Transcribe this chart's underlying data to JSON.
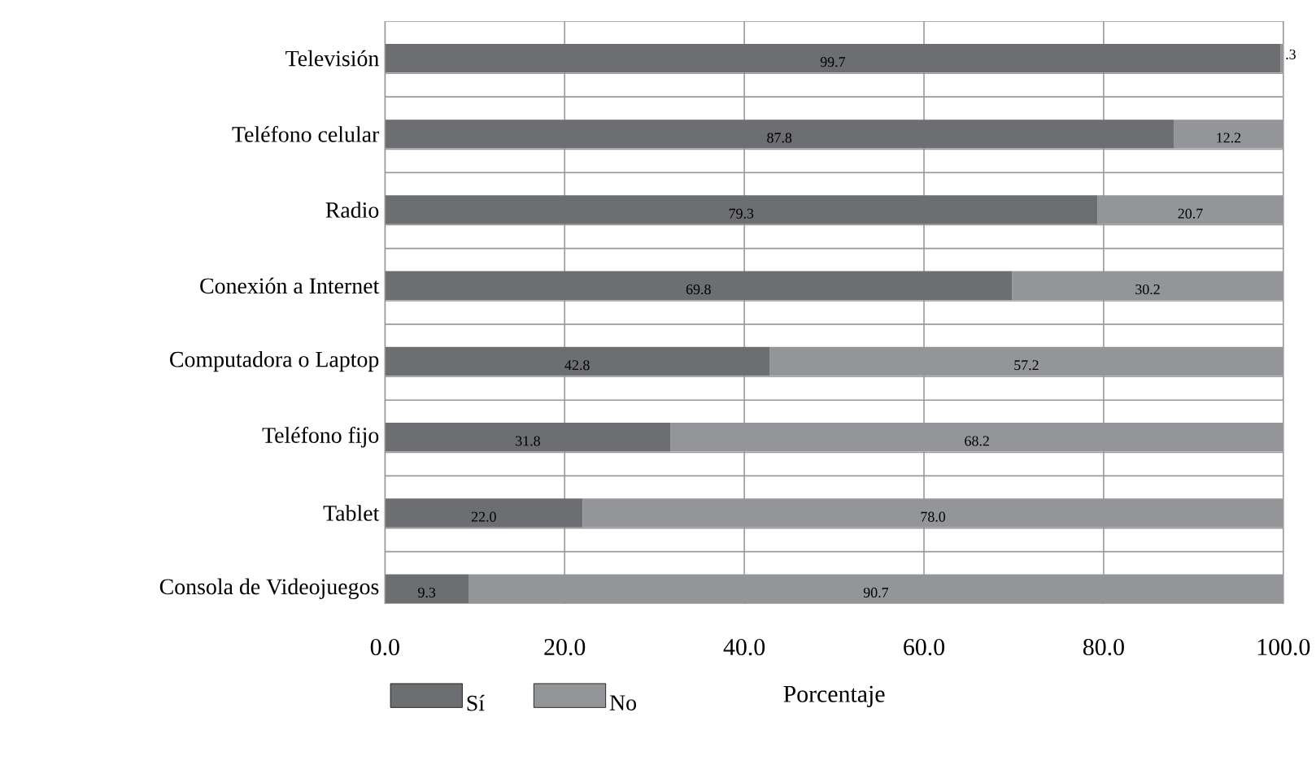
{
  "chart_data": {
    "type": "bar",
    "orientation": "horizontal",
    "stacked": true,
    "categories": [
      "Televisión",
      "Teléfono celular",
      "Radio",
      "Conexión a Internet",
      "Computadora o Laptop",
      "Teléfono fijo",
      "Tablet",
      "Consola de Videojuegos"
    ],
    "series": [
      {
        "name": "Sí",
        "color": "#6d6e71",
        "values": [
          99.7,
          87.8,
          79.3,
          69.8,
          42.8,
          31.8,
          22.0,
          9.3
        ],
        "value_labels": [
          "99.7",
          "87.8",
          "79.3",
          "69.8",
          "42.8",
          "31.8",
          "22.0",
          "9.3"
        ]
      },
      {
        "name": "No",
        "color": "#939598",
        "values": [
          0.3,
          12.2,
          20.7,
          30.2,
          57.2,
          68.2,
          78.0,
          90.7
        ],
        "value_labels": [
          ".3",
          "12.2",
          "20.7",
          "30.2",
          "57.2",
          "68.2",
          "78.0",
          "90.7"
        ]
      }
    ],
    "xlabel": "Porcentaje",
    "xlim": [
      0,
      100
    ],
    "xticks": [
      {
        "value": 0,
        "label": "0.0"
      },
      {
        "value": 20,
        "label": "20.0"
      },
      {
        "value": 40,
        "label": "40.0"
      },
      {
        "value": 60,
        "label": "60.0"
      },
      {
        "value": 80,
        "label": "80.0"
      },
      {
        "value": 100,
        "label": "100.0"
      }
    ],
    "grid": "x",
    "legend": "bottom left"
  }
}
